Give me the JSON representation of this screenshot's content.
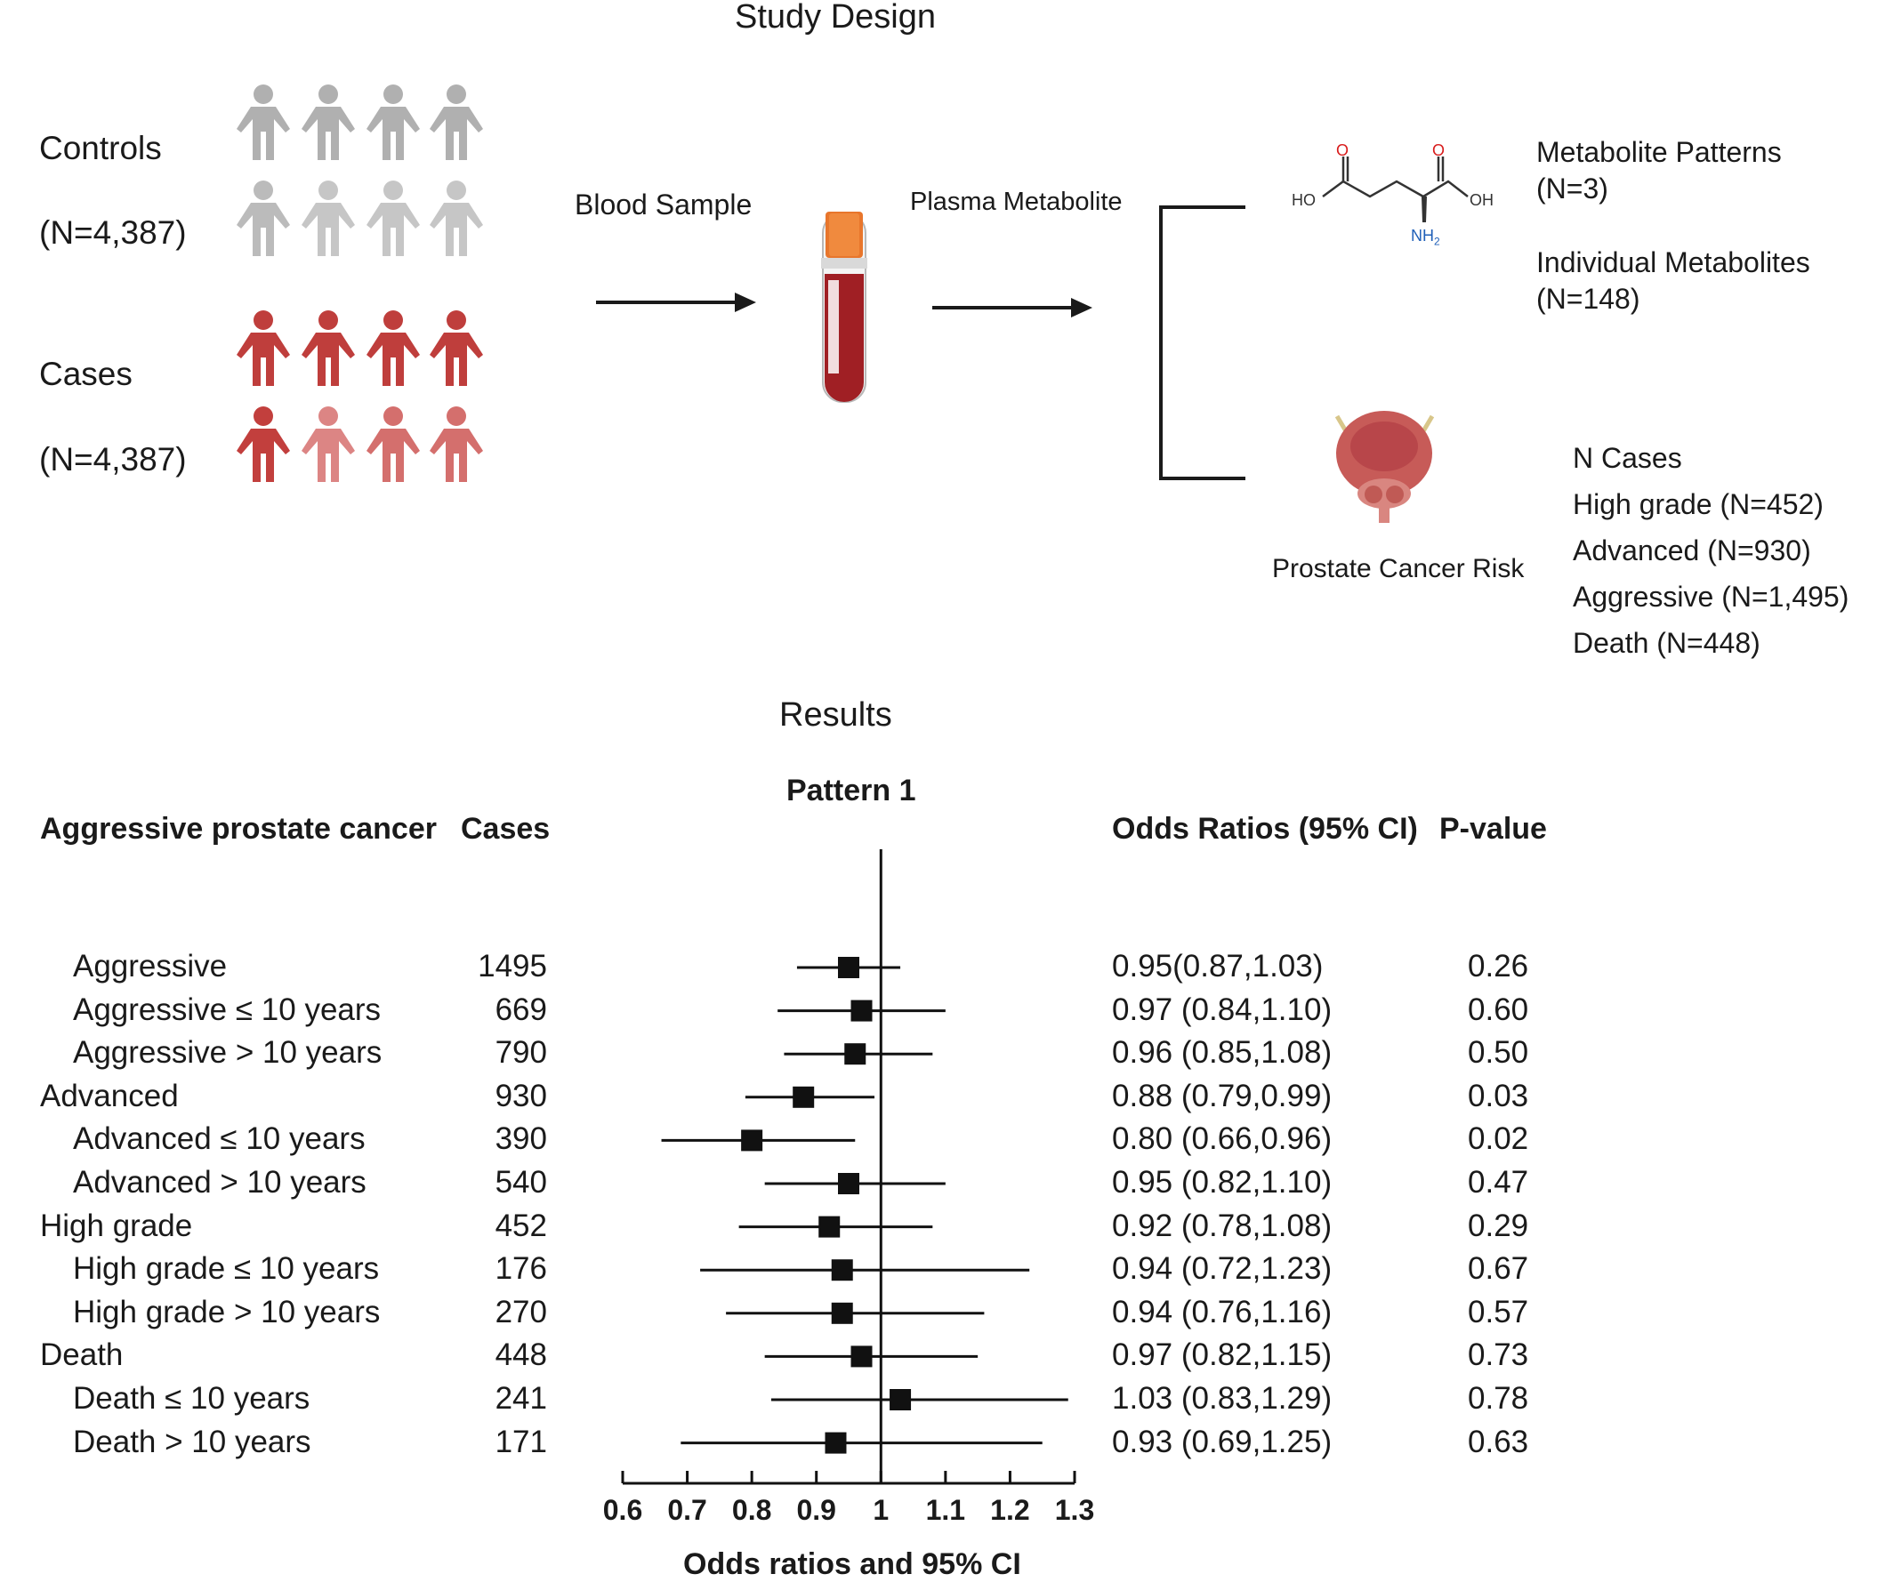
{
  "study_design": {
    "title": "Study Design",
    "controls_label": "Controls",
    "controls_n": "(N=4,387)",
    "cases_label": "Cases",
    "cases_n": "(N=4,387)",
    "blood_sample": "Blood Sample",
    "plasma_metabolite": "Plasma Metabolite",
    "molecule": {
      "o1": "O",
      "o2": "O",
      "ho": "HO",
      "oh": "OH",
      "nh2": "NH",
      "nh2_sub": "2"
    },
    "metabolite_patterns": "Metabolite Patterns",
    "metabolite_patterns_n": "(N=3)",
    "individual_metabolites": "Individual Metabolites",
    "individual_metabolites_n": "(N=148)",
    "prostate_cancer_risk": "Prostate Cancer Risk",
    "n_cases_title": "N Cases",
    "n_cases": [
      "High grade (N=452)",
      "Advanced (N=930)",
      "Aggressive (N=1,495)",
      "Death (N=448)"
    ],
    "colors": {
      "controls": "#b5b5b5",
      "cases": "#c0413f",
      "tube_cap": "#e8762c",
      "blood": "#a01f24"
    }
  },
  "results": {
    "title": "Results",
    "pattern_title": "Pattern 1",
    "col_outcome": "Aggressive prostate cancer",
    "col_cases": "Cases",
    "col_or": "Odds Ratios (95% CI)",
    "col_p": "P-value",
    "x_axis_label": "Odds ratios and 95% CI"
  },
  "chart_data": {
    "type": "forest",
    "title": "Pattern 1",
    "xlabel": "Odds ratios and 95% CI",
    "xlim": [
      0.6,
      1.3
    ],
    "x_ticks": [
      "0.6",
      "0.7",
      "0.8",
      "0.9",
      "1",
      "1.1",
      "1.2",
      "1.3"
    ],
    "reference_line": 1,
    "rows": [
      {
        "label": "Aggressive",
        "indent": true,
        "cases": "1495",
        "or": 0.95,
        "lo": 0.87,
        "hi": 1.03,
        "or_text": "0.95(0.87,1.03)",
        "p": "0.26"
      },
      {
        "label": "Aggressive ≤ 10 years",
        "indent": true,
        "cases": "669",
        "or": 0.97,
        "lo": 0.84,
        "hi": 1.1,
        "or_text": "0.97 (0.84,1.10)",
        "p": "0.60"
      },
      {
        "label": "Aggressive > 10 years",
        "indent": true,
        "cases": "790",
        "or": 0.96,
        "lo": 0.85,
        "hi": 1.08,
        "or_text": "0.96 (0.85,1.08)",
        "p": "0.50"
      },
      {
        "label": "Advanced",
        "indent": false,
        "cases": "930",
        "or": 0.88,
        "lo": 0.79,
        "hi": 0.99,
        "or_text": "0.88 (0.79,0.99)",
        "p": "0.03"
      },
      {
        "label": "Advanced ≤ 10 years",
        "indent": true,
        "cases": "390",
        "or": 0.8,
        "lo": 0.66,
        "hi": 0.96,
        "or_text": "0.80 (0.66,0.96)",
        "p": "0.02"
      },
      {
        "label": "Advanced > 10 years",
        "indent": true,
        "cases": "540",
        "or": 0.95,
        "lo": 0.82,
        "hi": 1.1,
        "or_text": "0.95 (0.82,1.10)",
        "p": "0.47"
      },
      {
        "label": "High grade",
        "indent": false,
        "cases": "452",
        "or": 0.92,
        "lo": 0.78,
        "hi": 1.08,
        "or_text": "0.92 (0.78,1.08)",
        "p": "0.29"
      },
      {
        "label": "High grade ≤ 10 years",
        "indent": true,
        "cases": "176",
        "or": 0.94,
        "lo": 0.72,
        "hi": 1.23,
        "or_text": "0.94 (0.72,1.23)",
        "p": "0.67"
      },
      {
        "label": "High grade > 10 years",
        "indent": true,
        "cases": "270",
        "or": 0.94,
        "lo": 0.76,
        "hi": 1.16,
        "or_text": "0.94 (0.76,1.16)",
        "p": "0.57"
      },
      {
        "label": "Death",
        "indent": false,
        "cases": "448",
        "or": 0.97,
        "lo": 0.82,
        "hi": 1.15,
        "or_text": "0.97 (0.82,1.15)",
        "p": "0.73"
      },
      {
        "label": "Death ≤ 10 years",
        "indent": true,
        "cases": "241",
        "or": 1.03,
        "lo": 0.83,
        "hi": 1.29,
        "or_text": "1.03 (0.83,1.29)",
        "p": "0.78"
      },
      {
        "label": "Death > 10 years",
        "indent": true,
        "cases": "171",
        "or": 0.93,
        "lo": 0.69,
        "hi": 1.25,
        "or_text": "0.93 (0.69,1.25)",
        "p": "0.63"
      }
    ]
  }
}
